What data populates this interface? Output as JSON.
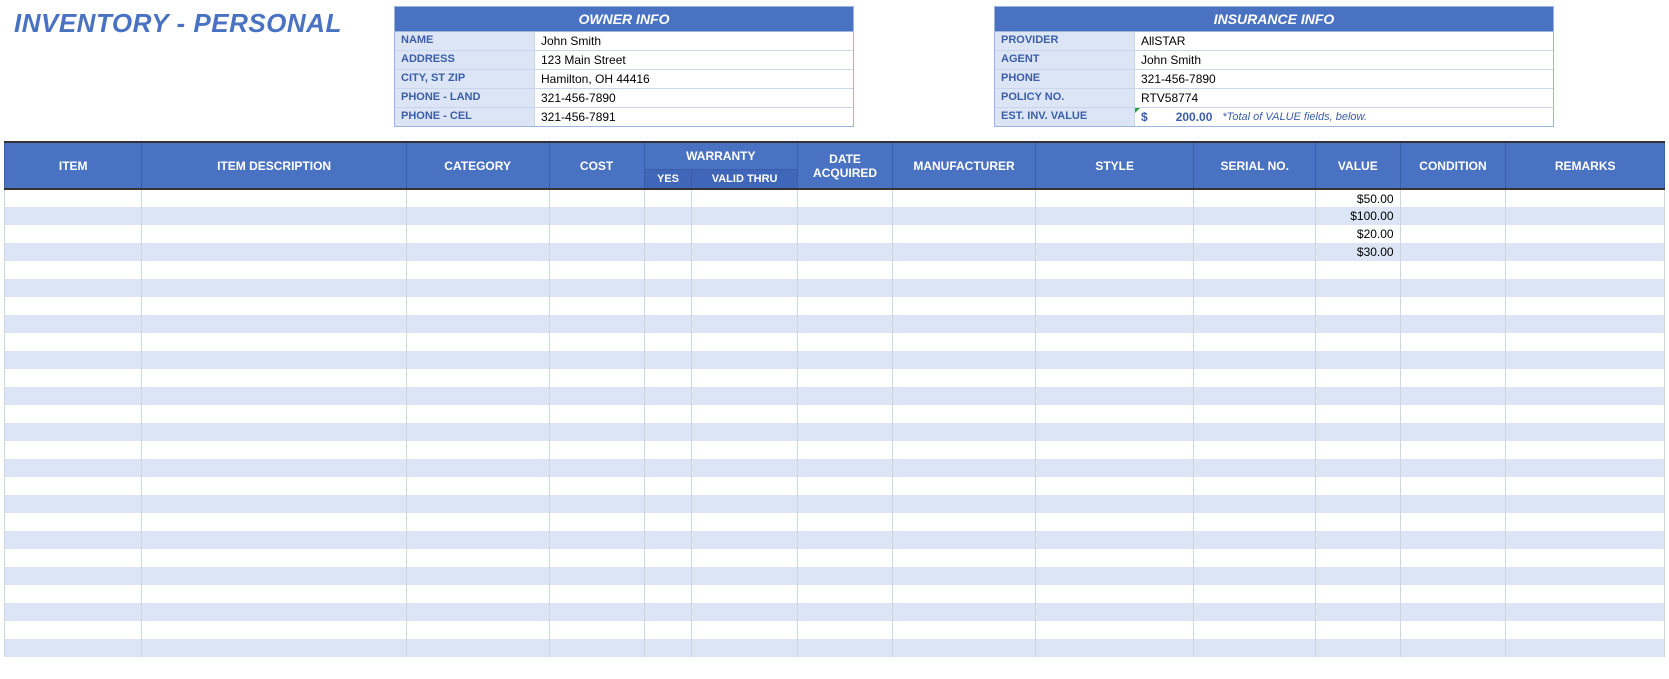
{
  "title": "INVENTORY - PERSONAL",
  "owner_info": {
    "header": "OWNER INFO",
    "rows": [
      {
        "label": "NAME",
        "value": "John Smith"
      },
      {
        "label": "ADDRESS",
        "value": "123 Main Street"
      },
      {
        "label": "CITY, ST  ZIP",
        "value": "Hamilton, OH  44416"
      },
      {
        "label": "PHONE - LAND",
        "value": "321-456-7890"
      },
      {
        "label": "PHONE - CEL",
        "value": "321-456-7891"
      }
    ]
  },
  "insurance_info": {
    "header": "INSURANCE INFO",
    "rows": [
      {
        "label": "PROVIDER",
        "value": "AllSTAR"
      },
      {
        "label": "AGENT",
        "value": "John Smith"
      },
      {
        "label": "PHONE",
        "value": "321-456-7890"
      },
      {
        "label": "POLICY NO.",
        "value": "RTV58774"
      }
    ],
    "est_label": "EST. INV. VALUE",
    "est_currency": "$",
    "est_amount": "200.00",
    "est_note": "*Total of VALUE fields, below."
  },
  "table": {
    "headers": {
      "item": "ITEM",
      "description": "ITEM DESCRIPTION",
      "category": "CATEGORY",
      "cost": "COST",
      "warranty": "WARRANTY",
      "warranty_yes": "YES",
      "warranty_thru": "VALID THRU",
      "date_acquired": "DATE ACQUIRED",
      "manufacturer": "MANUFACTURER",
      "style": "STYLE",
      "serial": "SERIAL NO.",
      "value": "VALUE",
      "condition": "CONDITION",
      "remarks": "REMARKS"
    },
    "value_rows": [
      "$50.00",
      "$100.00",
      "$20.00",
      "$30.00"
    ],
    "total_rows": 26,
    "colors": {
      "header_bg": "#4a72c3",
      "header_sub_bg": "#3f66b8",
      "alt_row_bg": "#dbe5f5",
      "row_bg": "#ffffff",
      "border": "#cfd5dc"
    }
  }
}
